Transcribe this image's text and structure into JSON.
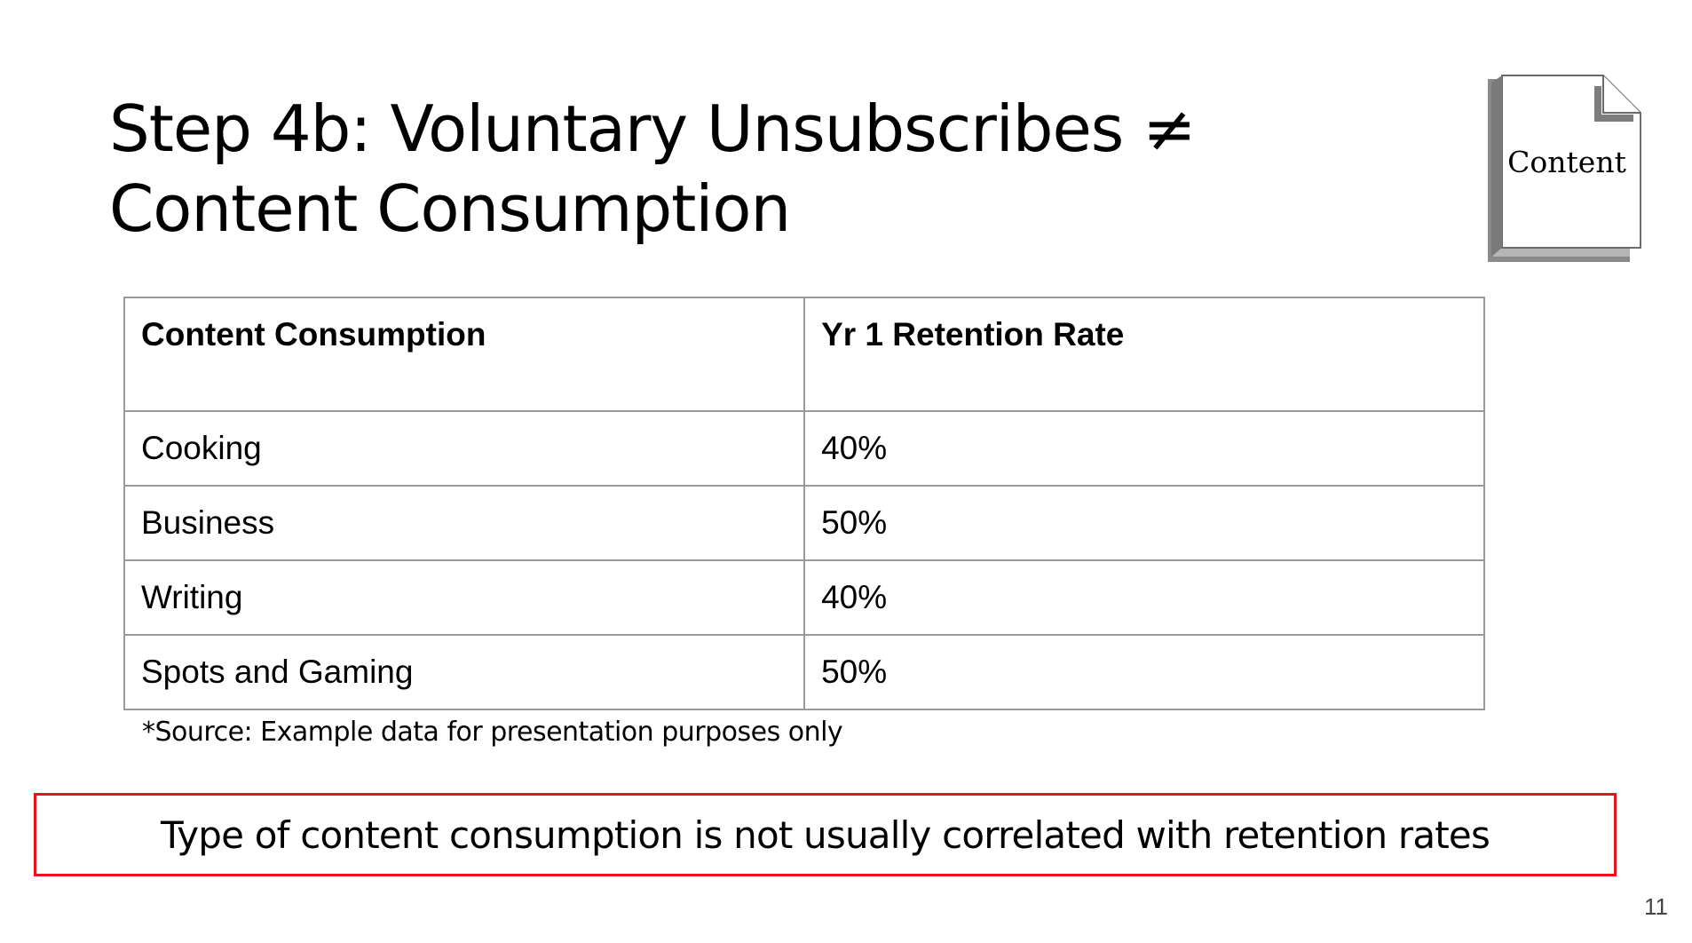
{
  "slide": {
    "title": "Step 4b: Voluntary Unsubscribes  ≠  Content Consumption",
    "icon": {
      "name": "document-icon",
      "label": "Content"
    },
    "table": {
      "headers": [
        "Content Consumption",
        "Yr 1 Retention Rate"
      ],
      "rows": [
        [
          "Cooking",
          "40%"
        ],
        [
          "Business",
          "50%"
        ],
        [
          "Writing",
          "40%"
        ],
        [
          "Spots and Gaming",
          "50%"
        ]
      ]
    },
    "source_note": "*Source: Example data for presentation purposes only",
    "callout": {
      "text": "Type of content consumption is not usually correlated with retention rates",
      "border_color": "#e8141c"
    },
    "page_number": "11"
  }
}
